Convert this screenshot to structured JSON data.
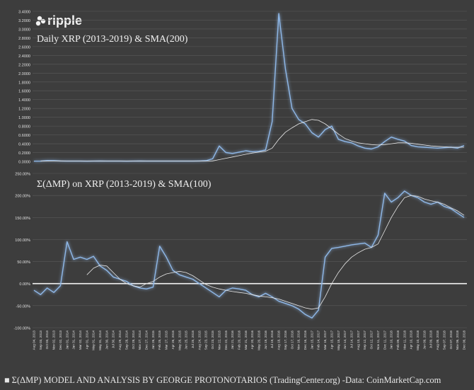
{
  "logo": {
    "text": "ripple"
  },
  "footer": {
    "text": "■ Σ(ΔMP) MODEL AND ANALYSIS BY GEORGE PROTONOTARIOS (TradingCenter.org) -Data: CoinMarketCap.com"
  },
  "colors": {
    "background": "#3d3d3d",
    "line": "#8fb8e8",
    "glow": "#5f8fd0",
    "sma": "#e8e8e8",
    "grid": "#5a5a5a",
    "text": "#e0e0e0"
  },
  "chart_data": [
    {
      "type": "line",
      "title": "Daily XRP (2013-2019) & SMA(200)",
      "yticks": [
        "0.0000",
        "0.2000",
        "0.4000",
        "0.6000",
        "0.8000",
        "1.0000",
        "1.2000",
        "1.4000",
        "1.6000",
        "1.8000",
        "2.0000",
        "2.2000",
        "2.4000",
        "2.6000",
        "2.8000",
        "3.0000",
        "3.2000",
        "3.4000"
      ],
      "ylim": [
        0,
        3.4
      ],
      "grid": true,
      "series": [
        {
          "values": [
            0.005,
            0.006,
            0.02,
            0.02,
            0.01,
            0.007,
            0.006,
            0.006,
            0.005,
            0.006,
            0.008,
            0.007,
            0.007,
            0.006,
            0.005,
            0.006,
            0.008,
            0.007,
            0.006,
            0.006,
            0.006,
            0.006,
            0.006,
            0.006,
            0.007,
            0.009,
            0.016,
            0.06,
            0.35,
            0.2,
            0.18,
            0.21,
            0.24,
            0.22,
            0.23,
            0.26,
            0.9,
            3.35,
            2.1,
            1.2,
            0.95,
            0.85,
            0.65,
            0.55,
            0.72,
            0.8,
            0.5,
            0.45,
            0.42,
            0.35,
            0.3,
            0.28,
            0.33,
            0.45,
            0.55,
            0.5,
            0.46,
            0.36,
            0.33,
            0.32,
            0.31,
            0.3,
            0.31,
            0.32,
            0.3,
            0.36
          ]
        },
        {
          "values": [
            null,
            0.006,
            0.008,
            0.01,
            0.011,
            0.01,
            0.009,
            0.008,
            0.007,
            0.007,
            0.007,
            0.007,
            0.007,
            0.006,
            0.006,
            0.006,
            0.007,
            0.007,
            0.007,
            0.006,
            0.006,
            0.006,
            0.006,
            0.006,
            0.006,
            0.007,
            0.008,
            0.012,
            0.04,
            0.07,
            0.1,
            0.13,
            0.16,
            0.19,
            0.21,
            0.23,
            0.3,
            0.5,
            0.66,
            0.76,
            0.85,
            0.9,
            0.95,
            0.93,
            0.85,
            0.74,
            0.62,
            0.52,
            0.46,
            0.42,
            0.4,
            0.38,
            0.37,
            0.38,
            0.4,
            0.42,
            0.42,
            0.41,
            0.39,
            0.37,
            0.35,
            0.34,
            0.33,
            0.32,
            0.32,
            0.32
          ]
        }
      ]
    },
    {
      "type": "line",
      "title": "Σ(ΔMP) on XRP (2013-2019) & SMA(100)",
      "yticks": [
        "-100.00%",
        "-50.00%",
        "0.00%",
        "50.00%",
        "100.00%",
        "150.00%",
        "200.00%",
        "250.00%"
      ],
      "ylim": [
        -100,
        250
      ],
      "grid": true,
      "x": [
        "Aug 04, 2013",
        "Sep 03, 2013",
        "Oct 03, 2013",
        "Nov 02, 2013",
        "Dec 02, 2013",
        "Jan 01, 2014",
        "Jan 31, 2014",
        "Mar 02, 2014",
        "Apr 01, 2014",
        "May 01, 2014",
        "May 31, 2014",
        "Jun 30, 2014",
        "Jul 30, 2014",
        "Aug 29, 2014",
        "Sep 28, 2014",
        "Oct 28, 2014",
        "Nov 27, 2014",
        "Dec 27, 2014",
        "Jan 26, 2015",
        "Feb 25, 2015",
        "Mar 27, 2015",
        "Apr 26, 2015",
        "May 26, 2015",
        "Jun 25, 2015",
        "Jul 25, 2015",
        "Aug 24, 2015",
        "Sep 23, 2015",
        "Oct 23, 2015",
        "Nov 22, 2015",
        "Dec 22, 2015",
        "Jan 21, 2016",
        "Feb 20, 2016",
        "Mar 21, 2016",
        "Apr 20, 2016",
        "May 20, 2016",
        "Jun 19, 2016",
        "Jul 19, 2016",
        "Aug 18, 2016",
        "Sep 17, 2016",
        "Oct 17, 2016",
        "Nov 16, 2016",
        "Dec 16, 2016",
        "Jan 15, 2017",
        "Feb 14, 2017",
        "Mar 16, 2017",
        "Apr 15, 2017",
        "May 15, 2017",
        "Jun 14, 2017",
        "Jul 14, 2017",
        "Aug 13, 2017",
        "Sep 12, 2017",
        "Oct 12, 2017",
        "Nov 11, 2017",
        "Dec 11, 2017",
        "Jan 10, 2018",
        "Feb 09, 2018",
        "Mar 11, 2018",
        "Apr 10, 2018",
        "May 10, 2018",
        "Jun 09, 2018",
        "Jul 09, 2018",
        "Aug 08, 2018",
        "Sep 07, 2018",
        "Oct 07, 2018",
        "Nov 06, 2018",
        "Dec 06, 2018"
      ],
      "series": [
        {
          "values": [
            -15,
            -25,
            -10,
            -20,
            -5,
            95,
            55,
            60,
            55,
            62,
            40,
            30,
            15,
            10,
            5,
            -5,
            -10,
            -12,
            -8,
            85,
            60,
            30,
            20,
            15,
            10,
            0,
            -10,
            -20,
            -30,
            -15,
            -10,
            -12,
            -15,
            -25,
            -30,
            -22,
            -30,
            -40,
            -45,
            -50,
            -58,
            -70,
            -78,
            -60,
            60,
            80,
            82,
            85,
            88,
            90,
            92,
            82,
            110,
            205,
            185,
            195,
            210,
            200,
            195,
            185,
            180,
            185,
            175,
            170,
            160,
            150
          ]
        },
        {
          "values": [
            null,
            null,
            null,
            null,
            null,
            null,
            null,
            null,
            20,
            35,
            42,
            40,
            25,
            10,
            0,
            -5,
            -8,
            0,
            5,
            15,
            22,
            25,
            28,
            25,
            18,
            8,
            -2,
            -8,
            -12,
            -15,
            -18,
            -20,
            -22,
            -25,
            -28,
            -30,
            -32,
            -35,
            -40,
            -45,
            -50,
            -55,
            -58,
            -55,
            -30,
            0,
            25,
            45,
            60,
            70,
            78,
            82,
            90,
            120,
            150,
            175,
            195,
            200,
            198,
            192,
            188,
            185,
            180,
            172,
            165,
            155
          ]
        }
      ]
    }
  ]
}
